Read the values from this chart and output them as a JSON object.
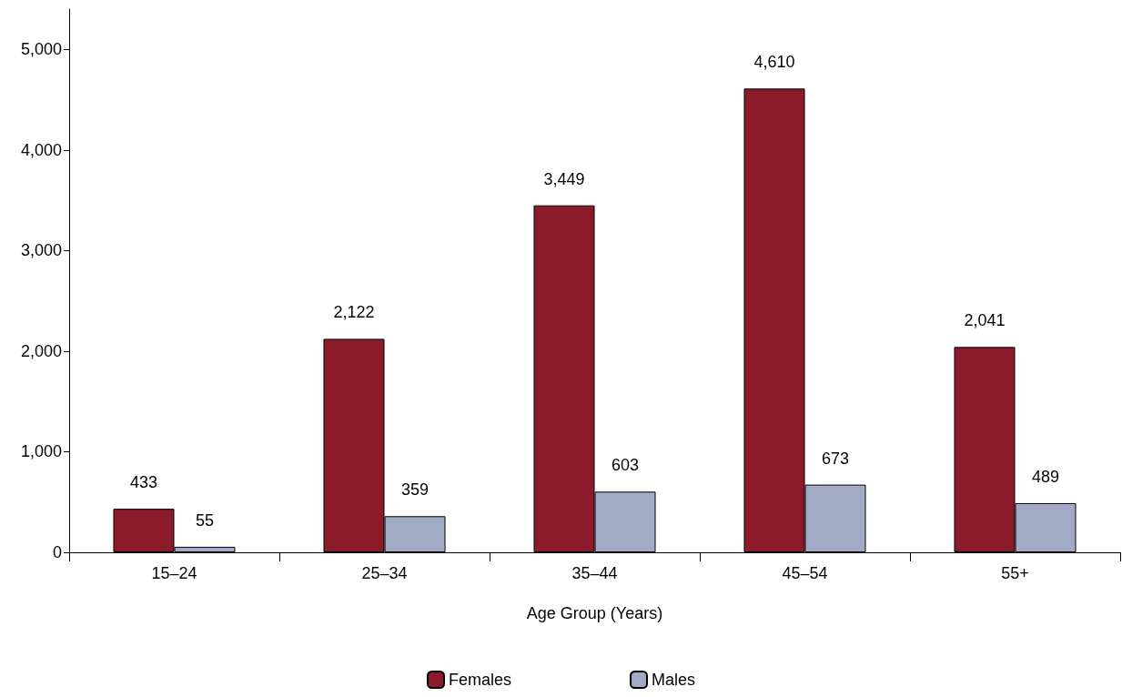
{
  "chart_data": {
    "type": "bar",
    "xlabel": "Age Group (Years)",
    "categories": [
      "15–24",
      "25–34",
      "35–44",
      "45–54",
      "55+"
    ],
    "series": [
      {
        "name": "Females",
        "color": "#8b1a2b",
        "values": [
          433,
          2122,
          3449,
          4610,
          2041
        ],
        "value_labels": [
          "433",
          "2,122",
          "3,449",
          "4,610",
          "2,041"
        ]
      },
      {
        "name": "Males",
        "color": "#a2abc6",
        "values": [
          55,
          359,
          603,
          673,
          489
        ],
        "value_labels": [
          "55",
          "359",
          "603",
          "673",
          "489"
        ]
      }
    ],
    "ylim": [
      0,
      5400
    ],
    "yticks": [
      {
        "value": 0,
        "label": "0"
      },
      {
        "value": 1000,
        "label": "1,000"
      },
      {
        "value": 2000,
        "label": "2,000"
      },
      {
        "value": 3000,
        "label": "3,000"
      },
      {
        "value": 4000,
        "label": "4,000"
      },
      {
        "value": 5000,
        "label": "5,000"
      }
    ],
    "grid": false,
    "legend": "bottom"
  }
}
